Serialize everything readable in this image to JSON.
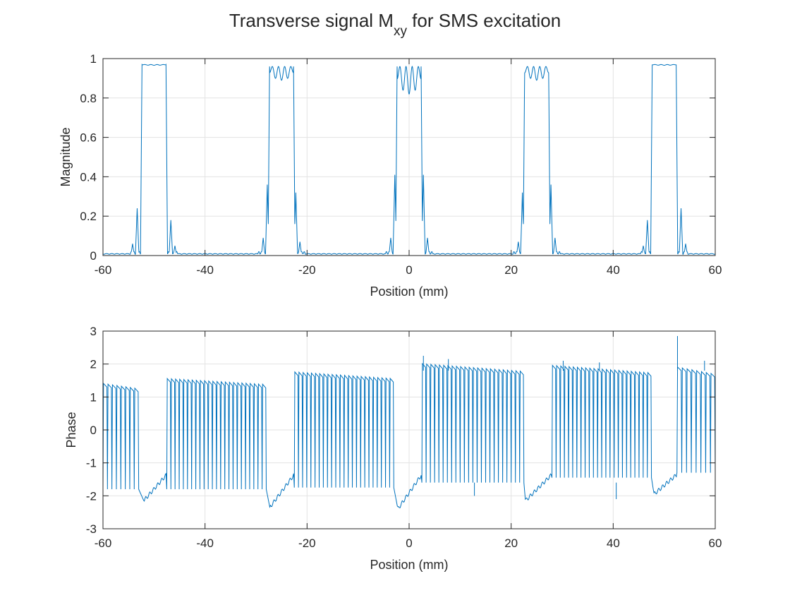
{
  "figure": {
    "title_main": "Transverse signal M",
    "title_sub": "xy",
    "title_tail": " for SMS excitation"
  },
  "chart_data": [
    {
      "type": "line",
      "name": "magnitude-plot",
      "xlabel": "Position (mm)",
      "ylabel": "Magnitude",
      "xlim": [
        -60,
        60
      ],
      "ylim": [
        0,
        1
      ],
      "xticks": [
        -60,
        -40,
        -20,
        0,
        20,
        40,
        60
      ],
      "yticks": [
        0,
        0.2,
        0.4,
        0.6,
        0.8,
        1
      ],
      "xtick_labels": [
        "-60",
        "-40",
        "-20",
        "0",
        "20",
        "40",
        "60"
      ],
      "ytick_labels": [
        "0",
        "0.2",
        "0.4",
        "0.6",
        "0.8",
        "1"
      ],
      "grid": true,
      "line_color": "#0072BD",
      "slices": [
        {
          "center": -50,
          "top": 0.97,
          "ripple": "flat"
        },
        {
          "center": -25,
          "top": 0.96,
          "ripple": "moderate"
        },
        {
          "center": 0,
          "top": 0.96,
          "ripple": "strong"
        },
        {
          "center": 25,
          "top": 0.96,
          "ripple": "moderate"
        },
        {
          "center": 50,
          "top": 0.97,
          "ripple": "flat"
        }
      ],
      "slice_width_mm": 5,
      "sidelobes": [
        {
          "x": -53.3,
          "y": 0.24
        },
        {
          "x": -54.2,
          "y": 0.06
        },
        {
          "x": -46.7,
          "y": 0.18
        },
        {
          "x": -45.9,
          "y": 0.05
        },
        {
          "x": -27.8,
          "y": 0.36
        },
        {
          "x": -28.6,
          "y": 0.09
        },
        {
          "x": -22.2,
          "y": 0.32
        },
        {
          "x": -21.4,
          "y": 0.07
        },
        {
          "x": -2.8,
          "y": 0.41
        },
        {
          "x": -3.6,
          "y": 0.09
        },
        {
          "x": 2.8,
          "y": 0.41
        },
        {
          "x": 3.6,
          "y": 0.09
        },
        {
          "x": 22.2,
          "y": 0.32
        },
        {
          "x": 21.4,
          "y": 0.07
        },
        {
          "x": 27.8,
          "y": 0.36
        },
        {
          "x": 28.6,
          "y": 0.09
        },
        {
          "x": 46.7,
          "y": 0.18
        },
        {
          "x": 45.9,
          "y": 0.05
        },
        {
          "x": 53.3,
          "y": 0.24
        },
        {
          "x": 54.2,
          "y": 0.06
        }
      ]
    },
    {
      "type": "line",
      "name": "phase-plot",
      "xlabel": "Position (mm)",
      "ylabel": "Phase",
      "xlim": [
        -60,
        60
      ],
      "ylim": [
        -3,
        3
      ],
      "xticks": [
        -60,
        -40,
        -20,
        0,
        20,
        40,
        60
      ],
      "yticks": [
        -3,
        -2,
        -1,
        0,
        1,
        2,
        3
      ],
      "xtick_labels": [
        "-60",
        "-40",
        "-20",
        "0",
        "20",
        "40",
        "60"
      ],
      "ytick_labels": [
        "-3",
        "-2",
        "-1",
        "0",
        "1",
        "2",
        "3"
      ],
      "grid": true,
      "line_color": "#0072BD",
      "segments": [
        {
          "x_start": -60,
          "x_end": -53,
          "top": 1.35,
          "bottom": -1.8,
          "teeth": 8
        },
        {
          "x_start": -47.5,
          "x_end": -28,
          "top": 1.5,
          "bottom": -1.8,
          "teeth": 24
        },
        {
          "x_start": -22.5,
          "x_end": -3,
          "top": 1.7,
          "bottom": -1.75,
          "teeth": 24
        },
        {
          "x_start": 2.5,
          "x_end": 22.5,
          "top": 1.95,
          "bottom": -1.6,
          "teeth": 24
        },
        {
          "x_start": 28,
          "x_end": 47.5,
          "top": 1.9,
          "bottom": -1.45,
          "teeth": 24
        },
        {
          "x_start": 52.5,
          "x_end": 60,
          "top": 1.85,
          "bottom": -1.3,
          "teeth": 8
        }
      ],
      "dips": [
        {
          "x": -52,
          "y": -2.15
        },
        {
          "x": -27.3,
          "y": -2.35
        },
        {
          "x": -2.2,
          "y": -2.4
        },
        {
          "x": 22.8,
          "y": -2.15
        },
        {
          "x": 48,
          "y": -1.95
        }
      ],
      "spikes": [
        {
          "x": 2.8,
          "y": 2.25
        },
        {
          "x": 7.7,
          "y": 2.15
        },
        {
          "x": 30.2,
          "y": 2.1
        },
        {
          "x": 37.3,
          "y": 2.05
        },
        {
          "x": 52.6,
          "y": 2.85
        },
        {
          "x": 57.9,
          "y": 2.1
        },
        {
          "x": 12.8,
          "y": -2.0
        },
        {
          "x": 40.6,
          "y": -2.1
        }
      ]
    }
  ]
}
